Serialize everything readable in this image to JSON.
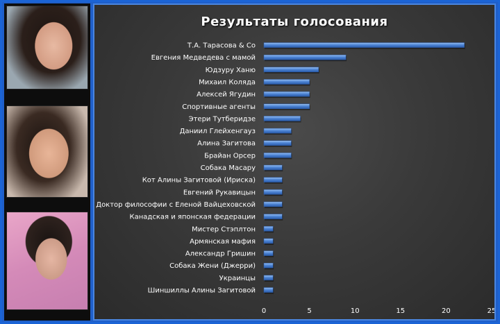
{
  "chart_data": {
    "type": "bar",
    "orientation": "horizontal",
    "title": "Результаты  голосования",
    "categories": [
      "Т.А. Тарасова & Co",
      "Евгения Медведева с мамой",
      "Юдзуру Ханю",
      "Михаил Коляда",
      "Алексей Ягудин",
      "Спортивные агенты",
      "Этери Тутберидзе",
      "Даниил Глейхенгауз",
      "Алина Загитова",
      "Брайан Орсер",
      "Собака Масару",
      "Кот Алины Загитовой (Ириска)",
      "Евгений Рукавицын",
      "Доктор философии с Еленой Вайцеховской",
      "Канадская и японская федерации",
      "Мистер Стэплтон",
      "Армянская мафия",
      "Александр Гришин",
      "Собака Жени (Джерри)",
      "Украинцы",
      "Шиншиллы Алины Загитовой"
    ],
    "values": [
      22,
      9,
      6,
      5,
      5,
      5,
      4,
      3,
      3,
      3,
      2,
      2,
      2,
      2,
      2,
      1,
      1,
      1,
      1,
      1,
      1
    ],
    "xlim": [
      0,
      25
    ],
    "xticks": [
      0,
      5,
      10,
      15,
      20,
      25
    ],
    "xlabel": "",
    "ylabel": "",
    "grid": false,
    "legend": "none",
    "bar_color": "#4f86d6"
  },
  "photos": [
    "portrait-photo-1",
    "portrait-photo-2",
    "portrait-photo-3"
  ]
}
